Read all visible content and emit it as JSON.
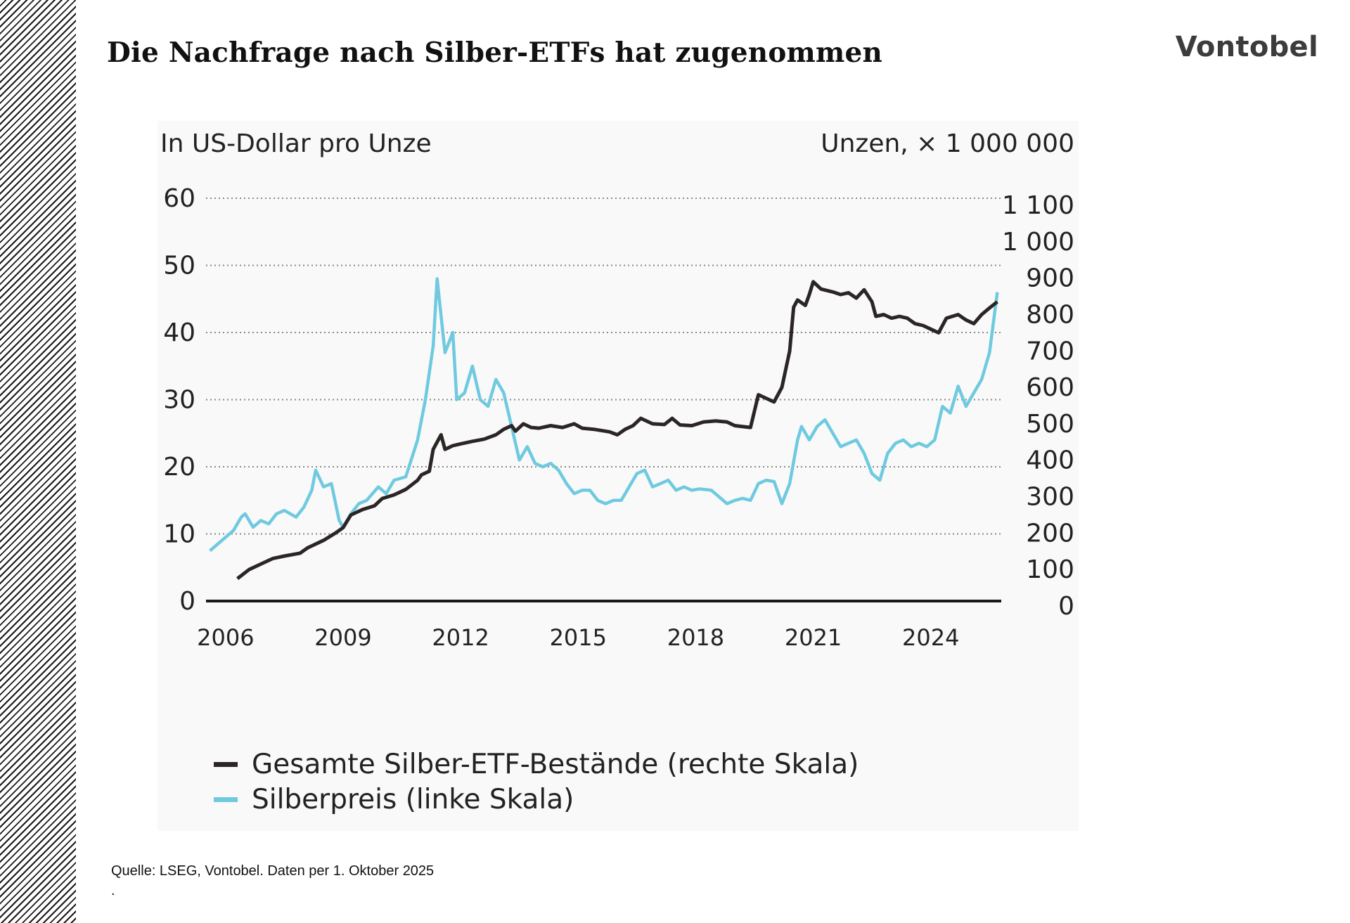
{
  "header": {
    "title": "Die Nachfrage nach Silber-ETFs hat zugenommen",
    "brand": "Vontobel"
  },
  "footer": {
    "source": "Quelle: LSEG, Vontobel. Daten per 1. Oktober 2025",
    "dot": "."
  },
  "colors": {
    "etf_line": "#2b2625",
    "price_line": "#6fcae0",
    "grid": "#888888",
    "axis": "#1a1a1a"
  },
  "chart_data": {
    "type": "line",
    "grid": "horizontal dotted",
    "legend_position": "bottom-left",
    "left_axis_label": "In US-Dollar pro Unze",
    "right_axis_label": "Unzen, × 1 000 000",
    "left_ylim": [
      0,
      60
    ],
    "right_ylim": [
      0,
      1100
    ],
    "left_ticks": [
      "0",
      "10",
      "20",
      "30",
      "40",
      "50",
      "60"
    ],
    "right_ticks": [
      "0",
      "100",
      "200",
      "300",
      "400",
      "500",
      "600",
      "700",
      "800",
      "900",
      "1 000",
      "1 100"
    ],
    "xlim": [
      2005.5,
      2025.8
    ],
    "x_ticks": [
      {
        "value": 2006,
        "label": "2006"
      },
      {
        "value": 2009,
        "label": "2009"
      },
      {
        "value": 2012,
        "label": "2012"
      },
      {
        "value": 2015,
        "label": "2015"
      },
      {
        "value": 2018,
        "label": "2018"
      },
      {
        "value": 2021,
        "label": "2021"
      },
      {
        "value": 2024,
        "label": "2024"
      }
    ],
    "series": [
      {
        "name": "Gesamte Silber-ETF-Bestände (rechte Skala)",
        "axis": "right",
        "points": [
          [
            2006.3,
            75
          ],
          [
            2006.6,
            100
          ],
          [
            2006.9,
            115
          ],
          [
            2007.2,
            130
          ],
          [
            2007.5,
            137
          ],
          [
            2007.9,
            145
          ],
          [
            2008.1,
            160
          ],
          [
            2008.5,
            180
          ],
          [
            2008.8,
            200
          ],
          [
            2009.0,
            215
          ],
          [
            2009.2,
            250
          ],
          [
            2009.5,
            265
          ],
          [
            2009.8,
            275
          ],
          [
            2010.0,
            295
          ],
          [
            2010.3,
            305
          ],
          [
            2010.6,
            320
          ],
          [
            2010.9,
            345
          ],
          [
            2011.0,
            360
          ],
          [
            2011.2,
            370
          ],
          [
            2011.3,
            430
          ],
          [
            2011.5,
            470
          ],
          [
            2011.6,
            430
          ],
          [
            2011.8,
            440
          ],
          [
            2012.0,
            445
          ],
          [
            2012.3,
            452
          ],
          [
            2012.6,
            458
          ],
          [
            2012.9,
            470
          ],
          [
            2013.1,
            485
          ],
          [
            2013.3,
            495
          ],
          [
            2013.4,
            480
          ],
          [
            2013.6,
            500
          ],
          [
            2013.8,
            490
          ],
          [
            2014.0,
            488
          ],
          [
            2014.3,
            495
          ],
          [
            2014.6,
            490
          ],
          [
            2014.9,
            500
          ],
          [
            2015.1,
            488
          ],
          [
            2015.4,
            485
          ],
          [
            2015.8,
            478
          ],
          [
            2016.0,
            470
          ],
          [
            2016.2,
            485
          ],
          [
            2016.4,
            495
          ],
          [
            2016.6,
            515
          ],
          [
            2016.9,
            500
          ],
          [
            2017.2,
            498
          ],
          [
            2017.4,
            515
          ],
          [
            2017.6,
            497
          ],
          [
            2017.9,
            495
          ],
          [
            2018.2,
            505
          ],
          [
            2018.5,
            508
          ],
          [
            2018.8,
            505
          ],
          [
            2019.0,
            495
          ],
          [
            2019.4,
            490
          ],
          [
            2019.6,
            580
          ],
          [
            2019.8,
            570
          ],
          [
            2020.0,
            560
          ],
          [
            2020.2,
            600
          ],
          [
            2020.4,
            700
          ],
          [
            2020.5,
            820
          ],
          [
            2020.6,
            840
          ],
          [
            2020.8,
            825
          ],
          [
            2020.9,
            855
          ],
          [
            2021.0,
            890
          ],
          [
            2021.2,
            870
          ],
          [
            2021.5,
            862
          ],
          [
            2021.7,
            855
          ],
          [
            2021.9,
            860
          ],
          [
            2022.1,
            845
          ],
          [
            2022.3,
            868
          ],
          [
            2022.5,
            835
          ],
          [
            2022.6,
            795
          ],
          [
            2022.8,
            800
          ],
          [
            2023.0,
            790
          ],
          [
            2023.2,
            795
          ],
          [
            2023.4,
            790
          ],
          [
            2023.6,
            775
          ],
          [
            2023.8,
            770
          ],
          [
            2024.0,
            760
          ],
          [
            2024.2,
            750
          ],
          [
            2024.4,
            790
          ],
          [
            2024.7,
            800
          ],
          [
            2024.9,
            785
          ],
          [
            2025.1,
            775
          ],
          [
            2025.3,
            800
          ],
          [
            2025.5,
            818
          ],
          [
            2025.7,
            835
          ]
        ]
      },
      {
        "name": "Silberpreis (linke Skala)",
        "axis": "left",
        "points": [
          [
            2005.6,
            7.5
          ],
          [
            2005.9,
            9
          ],
          [
            2006.2,
            10.5
          ],
          [
            2006.4,
            12.5
          ],
          [
            2006.5,
            13
          ],
          [
            2006.7,
            11
          ],
          [
            2006.9,
            12
          ],
          [
            2007.1,
            11.5
          ],
          [
            2007.3,
            13
          ],
          [
            2007.5,
            13.5
          ],
          [
            2007.8,
            12.5
          ],
          [
            2008.0,
            14
          ],
          [
            2008.2,
            16.5
          ],
          [
            2008.3,
            19.5
          ],
          [
            2008.5,
            17
          ],
          [
            2008.7,
            17.5
          ],
          [
            2008.9,
            12
          ],
          [
            2009.0,
            11
          ],
          [
            2009.2,
            13
          ],
          [
            2009.4,
            14.5
          ],
          [
            2009.6,
            15
          ],
          [
            2009.9,
            17
          ],
          [
            2010.1,
            16
          ],
          [
            2010.3,
            18
          ],
          [
            2010.6,
            18.5
          ],
          [
            2010.9,
            24
          ],
          [
            2011.1,
            30
          ],
          [
            2011.3,
            38
          ],
          [
            2011.4,
            48
          ],
          [
            2011.6,
            37
          ],
          [
            2011.8,
            40
          ],
          [
            2011.9,
            30
          ],
          [
            2012.1,
            31
          ],
          [
            2012.3,
            35
          ],
          [
            2012.5,
            30
          ],
          [
            2012.7,
            29
          ],
          [
            2012.9,
            33
          ],
          [
            2013.1,
            31
          ],
          [
            2013.3,
            26
          ],
          [
            2013.5,
            21
          ],
          [
            2013.7,
            23
          ],
          [
            2013.9,
            20.5
          ],
          [
            2014.1,
            20
          ],
          [
            2014.3,
            20.5
          ],
          [
            2014.5,
            19.5
          ],
          [
            2014.7,
            17.5
          ],
          [
            2014.9,
            16
          ],
          [
            2015.1,
            16.5
          ],
          [
            2015.3,
            16.5
          ],
          [
            2015.5,
            15
          ],
          [
            2015.7,
            14.5
          ],
          [
            2015.9,
            15
          ],
          [
            2016.1,
            15
          ],
          [
            2016.3,
            17
          ],
          [
            2016.5,
            19
          ],
          [
            2016.7,
            19.5
          ],
          [
            2016.9,
            17
          ],
          [
            2017.1,
            17.5
          ],
          [
            2017.3,
            18
          ],
          [
            2017.5,
            16.5
          ],
          [
            2017.7,
            17
          ],
          [
            2017.9,
            16.5
          ],
          [
            2018.1,
            16.7
          ],
          [
            2018.4,
            16.5
          ],
          [
            2018.6,
            15.5
          ],
          [
            2018.8,
            14.5
          ],
          [
            2019.0,
            15
          ],
          [
            2019.2,
            15.3
          ],
          [
            2019.4,
            15
          ],
          [
            2019.6,
            17.5
          ],
          [
            2019.8,
            18
          ],
          [
            2020.0,
            17.8
          ],
          [
            2020.2,
            14.5
          ],
          [
            2020.4,
            17.5
          ],
          [
            2020.6,
            24
          ],
          [
            2020.7,
            26
          ],
          [
            2020.9,
            24
          ],
          [
            2021.1,
            26
          ],
          [
            2021.3,
            27
          ],
          [
            2021.5,
            25
          ],
          [
            2021.7,
            23
          ],
          [
            2021.9,
            23.5
          ],
          [
            2022.1,
            24
          ],
          [
            2022.3,
            22
          ],
          [
            2022.5,
            19
          ],
          [
            2022.7,
            18
          ],
          [
            2022.9,
            22
          ],
          [
            2023.1,
            23.5
          ],
          [
            2023.3,
            24
          ],
          [
            2023.5,
            23
          ],
          [
            2023.7,
            23.5
          ],
          [
            2023.9,
            23
          ],
          [
            2024.1,
            24
          ],
          [
            2024.3,
            29
          ],
          [
            2024.5,
            28
          ],
          [
            2024.7,
            32
          ],
          [
            2024.9,
            29
          ],
          [
            2025.1,
            31
          ],
          [
            2025.3,
            33
          ],
          [
            2025.5,
            37
          ],
          [
            2025.7,
            46
          ]
        ]
      }
    ]
  }
}
